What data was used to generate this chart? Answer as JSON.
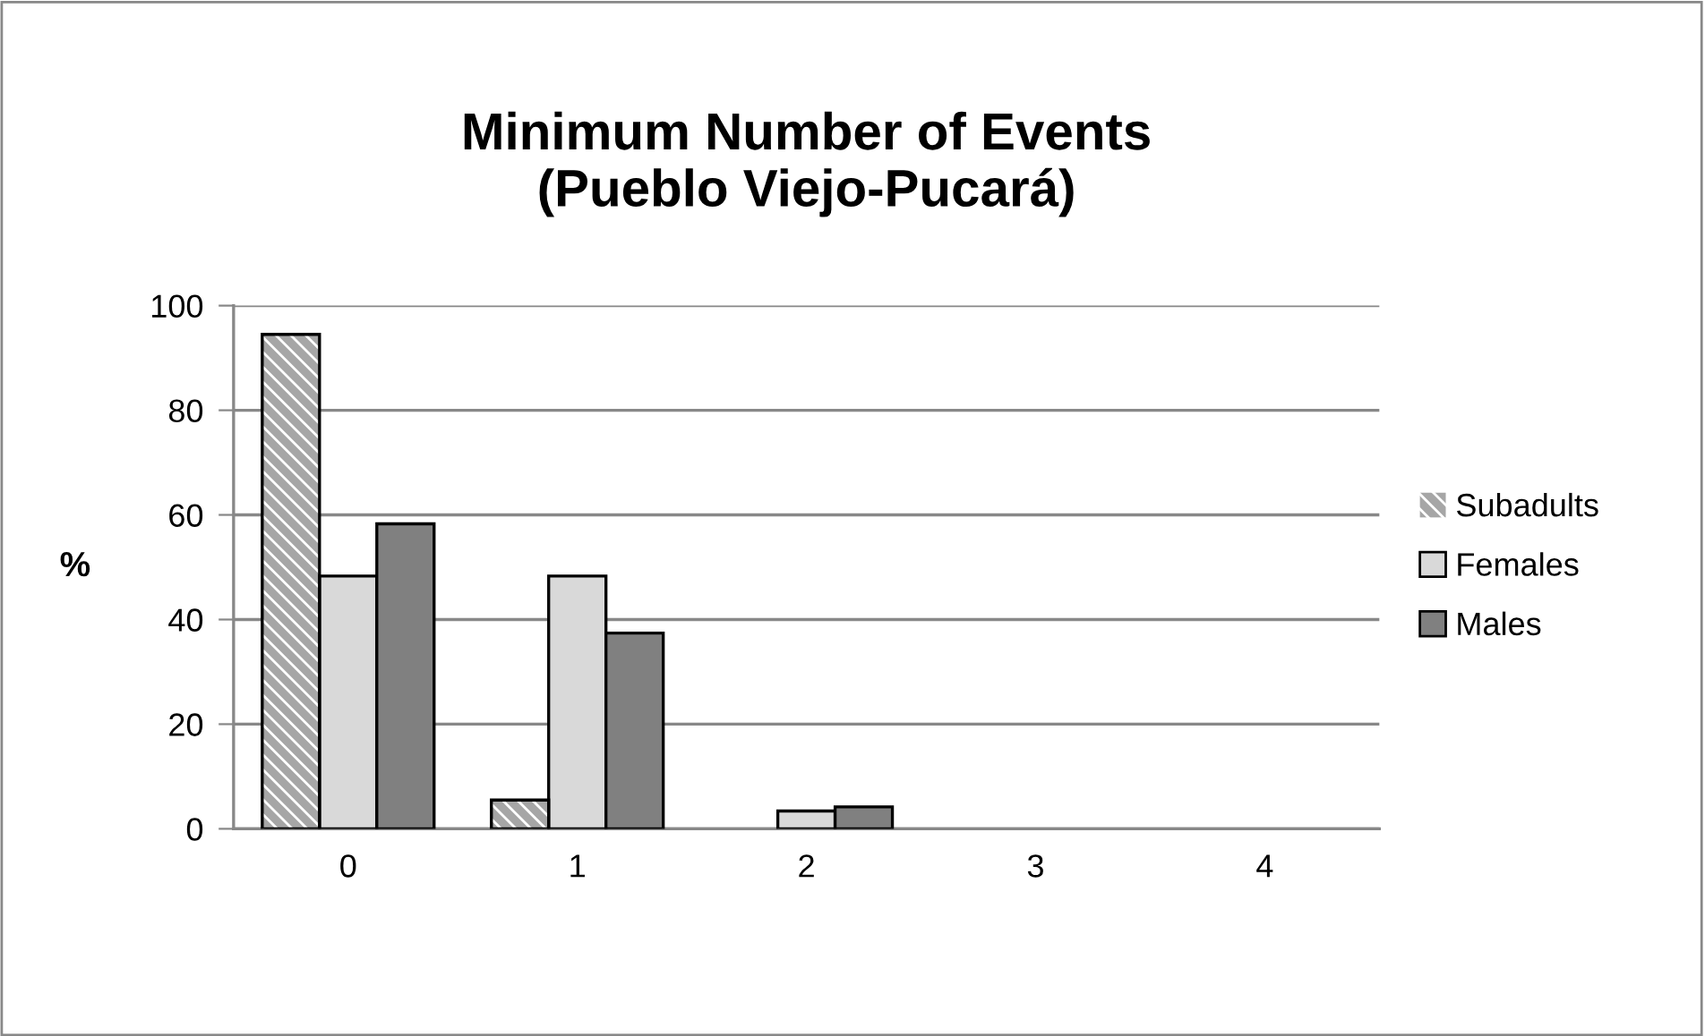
{
  "chart_data": {
    "type": "bar",
    "title": "Minimum Number of Events\n(Pueblo Viejo-Pucará)",
    "ylabel": "%",
    "categories": [
      "0",
      "1",
      "2",
      "3",
      "4"
    ],
    "series": [
      {
        "name": "Subadults",
        "color": "#a6a6a6",
        "values": [
          94.5,
          5.5,
          0,
          0,
          0
        ]
      },
      {
        "name": "Females",
        "color": "#d9d9d9",
        "values": [
          48.3,
          48.3,
          3.4,
          0,
          0
        ]
      },
      {
        "name": "Males",
        "color": "#808080",
        "values": [
          58.3,
          37.4,
          4.2,
          0,
          0
        ]
      }
    ],
    "ylim": [
      0,
      100
    ],
    "yticks": [
      0,
      20,
      40,
      60,
      80,
      100
    ],
    "grid": "y",
    "legend": "right"
  }
}
